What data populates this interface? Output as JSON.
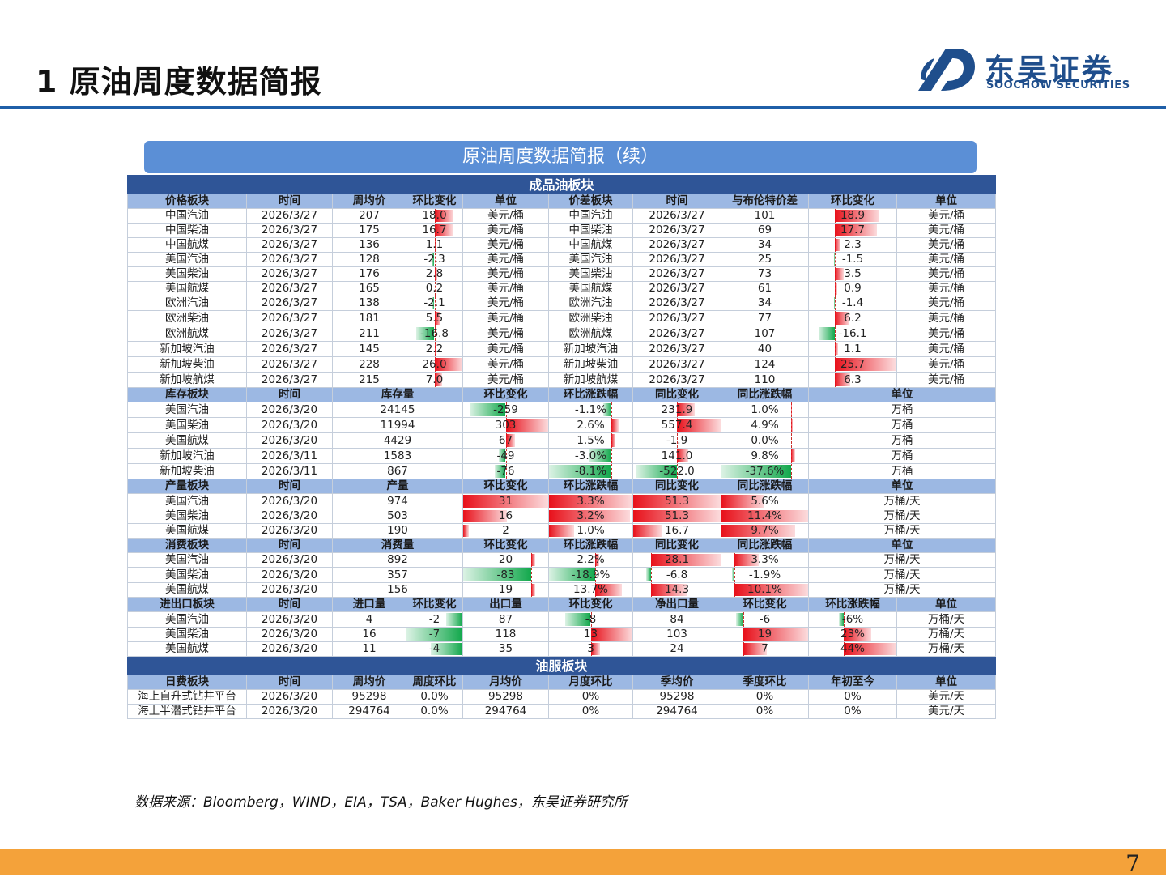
{
  "header": {
    "title": "1 原油周度数据简报",
    "logo": {
      "name_cn": "东吴证券",
      "name_en": "SOOCHOW SECURITIES"
    }
  },
  "banner": "原油周度数据简报（续）",
  "refined": {
    "section_title": "成品油板块",
    "price": {
      "headers": [
        "价格板块",
        "时间",
        "周均价",
        "环比变化",
        "单位",
        "价差板块",
        "时间",
        "与布伦特价差",
        "环比变化",
        "单位"
      ],
      "rows": [
        [
          "中国汽油",
          "2026/3/27",
          "207",
          "18.0",
          "美元/桶",
          "中国汽油",
          "2026/3/27",
          "101",
          "18.9",
          "美元/桶"
        ],
        [
          "中国柴油",
          "2026/3/27",
          "175",
          "16.7",
          "美元/桶",
          "中国柴油",
          "2026/3/27",
          "69",
          "17.7",
          "美元/桶"
        ],
        [
          "中国航煤",
          "2026/3/27",
          "136",
          "1.1",
          "美元/桶",
          "中国航煤",
          "2026/3/27",
          "34",
          "2.3",
          "美元/桶"
        ],
        [
          "美国汽油",
          "2026/3/27",
          "128",
          "-2.3",
          "美元/桶",
          "美国汽油",
          "2026/3/27",
          "25",
          "-1.5",
          "美元/桶"
        ],
        [
          "美国柴油",
          "2026/3/27",
          "176",
          "2.8",
          "美元/桶",
          "美国柴油",
          "2026/3/27",
          "73",
          "3.5",
          "美元/桶"
        ],
        [
          "美国航煤",
          "2026/3/27",
          "165",
          "0.2",
          "美元/桶",
          "美国航煤",
          "2026/3/27",
          "61",
          "0.9",
          "美元/桶"
        ],
        [
          "欧洲汽油",
          "2026/3/27",
          "138",
          "-2.1",
          "美元/桶",
          "欧洲汽油",
          "2026/3/27",
          "34",
          "-1.4",
          "美元/桶"
        ],
        [
          "欧洲柴油",
          "2026/3/27",
          "181",
          "5.5",
          "美元/桶",
          "欧洲柴油",
          "2026/3/27",
          "77",
          "6.2",
          "美元/桶"
        ],
        [
          "欧洲航煤",
          "2026/3/27",
          "211",
          "-16.8",
          "美元/桶",
          "欧洲航煤",
          "2026/3/27",
          "107",
          "-16.1",
          "美元/桶"
        ],
        [
          "新加坡汽油",
          "2026/3/27",
          "145",
          "2.2",
          "美元/桶",
          "新加坡汽油",
          "2026/3/27",
          "40",
          "1.1",
          "美元/桶"
        ],
        [
          "新加坡柴油",
          "2026/3/27",
          "228",
          "26.0",
          "美元/桶",
          "新加坡柴油",
          "2026/3/27",
          "124",
          "25.7",
          "美元/桶"
        ],
        [
          "新加坡航煤",
          "2026/3/27",
          "215",
          "7.0",
          "美元/桶",
          "新加坡航煤",
          "2026/3/27",
          "110",
          "6.3",
          "美元/桶"
        ]
      ]
    },
    "inventory": {
      "headers": [
        "库存板块",
        "时间",
        "库存量",
        "环比变化",
        "环比涨跌幅",
        "同比变化",
        "同比涨跌幅",
        "单位"
      ],
      "rows": [
        [
          "美国汽油",
          "2026/3/20",
          "24145",
          "-259",
          "-1.1%",
          "231.9",
          "1.0%",
          "万桶"
        ],
        [
          "美国柴油",
          "2026/3/20",
          "11994",
          "303",
          "2.6%",
          "557.4",
          "4.9%",
          "万桶"
        ],
        [
          "美国航煤",
          "2026/3/20",
          "4429",
          "67",
          "1.5%",
          "-1.9",
          "0.0%",
          "万桶"
        ],
        [
          "新加坡汽油",
          "2026/3/11",
          "1583",
          "-49",
          "-3.0%",
          "141.0",
          "9.8%",
          "万桶"
        ],
        [
          "新加坡柴油",
          "2026/3/11",
          "867",
          "-76",
          "-8.1%",
          "-522.0",
          "-37.6%",
          "万桶"
        ]
      ]
    },
    "production": {
      "headers": [
        "产量板块",
        "时间",
        "产量",
        "环比变化",
        "环比涨跌幅",
        "同比变化",
        "同比涨跌幅",
        "单位"
      ],
      "rows": [
        [
          "美国汽油",
          "2026/3/20",
          "974",
          "31",
          "3.3%",
          "51.3",
          "5.6%",
          "万桶/天"
        ],
        [
          "美国柴油",
          "2026/3/20",
          "503",
          "16",
          "3.2%",
          "51.3",
          "11.4%",
          "万桶/天"
        ],
        [
          "美国航煤",
          "2026/3/20",
          "190",
          "2",
          "1.0%",
          "16.7",
          "9.7%",
          "万桶/天"
        ]
      ]
    },
    "consumption": {
      "headers": [
        "消费板块",
        "时间",
        "消费量",
        "环比变化",
        "环比涨跌幅",
        "同比变化",
        "同比涨跌幅",
        "单位"
      ],
      "rows": [
        [
          "美国汽油",
          "2026/3/20",
          "892",
          "20",
          "2.2%",
          "28.1",
          "3.3%",
          "万桶/天"
        ],
        [
          "美国柴油",
          "2026/3/20",
          "357",
          "-83",
          "-18.9%",
          "-6.8",
          "-1.9%",
          "万桶/天"
        ],
        [
          "美国航煤",
          "2026/3/20",
          "156",
          "19",
          "13.7%",
          "14.3",
          "10.1%",
          "万桶/天"
        ]
      ]
    },
    "trade": {
      "headers": [
        "进出口板块",
        "时间",
        "进口量",
        "环比变化",
        "出口量",
        "环比变化",
        "净出口量",
        "环比变化",
        "环比涨跌幅",
        "单位"
      ],
      "rows": [
        [
          "美国汽油",
          "2026/3/20",
          "4",
          "-2",
          "87",
          "-8",
          "84",
          "-6",
          "-6%",
          "万桶/天"
        ],
        [
          "美国柴油",
          "2026/3/20",
          "16",
          "-7",
          "118",
          "13",
          "103",
          "19",
          "23%",
          "万桶/天"
        ],
        [
          "美国航煤",
          "2026/3/20",
          "11",
          "-4",
          "35",
          "3",
          "24",
          "7",
          "44%",
          "万桶/天"
        ]
      ]
    }
  },
  "oilfield": {
    "section_title": "油服板块",
    "rig": {
      "headers": [
        "日费板块",
        "时间",
        "周均价",
        "周度环比",
        "月均价",
        "月度环比",
        "季均价",
        "季度环比",
        "年初至今",
        "单位"
      ],
      "rows": [
        [
          "海上自升式钻井平台",
          "2026/3/20",
          "95298",
          "0.0%",
          "95298",
          "0%",
          "95298",
          "0%",
          "0%",
          "美元/天"
        ],
        [
          "海上半潜式钻井平台",
          "2026/3/20",
          "294764",
          "0.0%",
          "294764",
          "0%",
          "294764",
          "0%",
          "0%",
          "美元/天"
        ]
      ]
    }
  },
  "source": "数据来源：Bloomberg，WIND，EIA，TSA，Baker Hughes，东吴证券研究所",
  "page_number": "7",
  "colors": {
    "accent": "#1f5fa8",
    "section": "#2f5597",
    "header": "#9cb8e3",
    "banner": "#5b8fd6",
    "up": "#e8101a",
    "down": "#12a84c",
    "footer": "#f4a23a"
  }
}
